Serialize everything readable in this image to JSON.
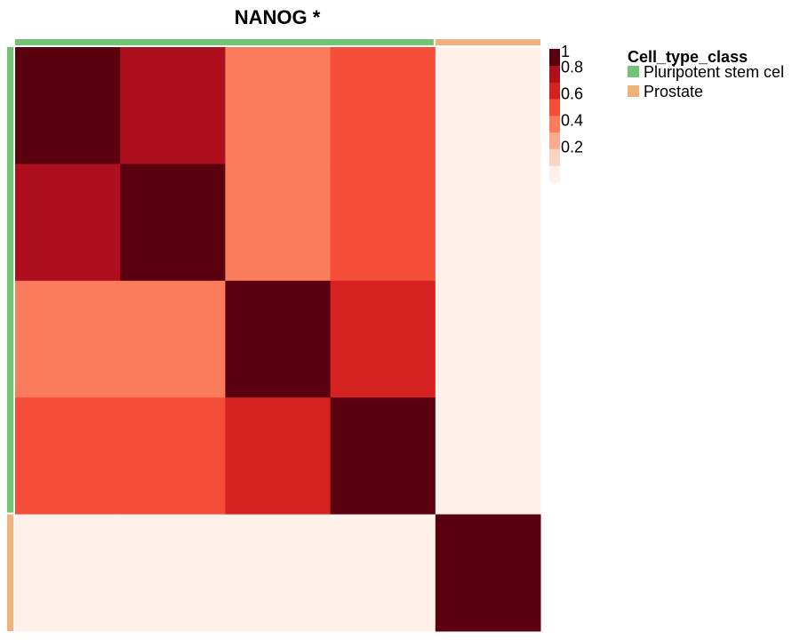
{
  "chart_data": {
    "type": "heatmap",
    "title": "NANOG *",
    "xlabel": "",
    "ylabel": "",
    "matrix": [
      [
        1.0,
        0.85,
        0.45,
        0.55,
        0.0
      ],
      [
        0.85,
        1.0,
        0.45,
        0.55,
        0.0
      ],
      [
        0.45,
        0.45,
        1.0,
        0.65,
        0.0
      ],
      [
        0.55,
        0.55,
        0.65,
        1.0,
        0.0
      ],
      [
        0.0,
        0.0,
        0.0,
        0.0,
        1.0
      ]
    ],
    "sample_classes": [
      "Pluripotent stem cel",
      "Pluripotent stem cel",
      "Pluripotent stem cel",
      "Pluripotent stem cel",
      "Prostate"
    ],
    "colorbar": {
      "range": [
        0,
        1
      ],
      "ticks": [
        1,
        0.8,
        0.6,
        0.4,
        0.2
      ],
      "tick_labels": [
        "1",
        "0.8",
        "0.6",
        "0.4",
        "0.2"
      ],
      "colors": [
        "#fff0ea",
        "#fdd3c1",
        "#fcab8f",
        "#fb7c5c",
        "#f44d38",
        "#d52221",
        "#ad0f1c",
        "#5a000f"
      ]
    },
    "legend": {
      "title": "Cell_type_class",
      "placement": "top-right",
      "items": [
        {
          "label": "Pluripotent stem cel",
          "color": "#74c476"
        },
        {
          "label": "Prostate",
          "color": "#f0b27a"
        }
      ]
    }
  }
}
